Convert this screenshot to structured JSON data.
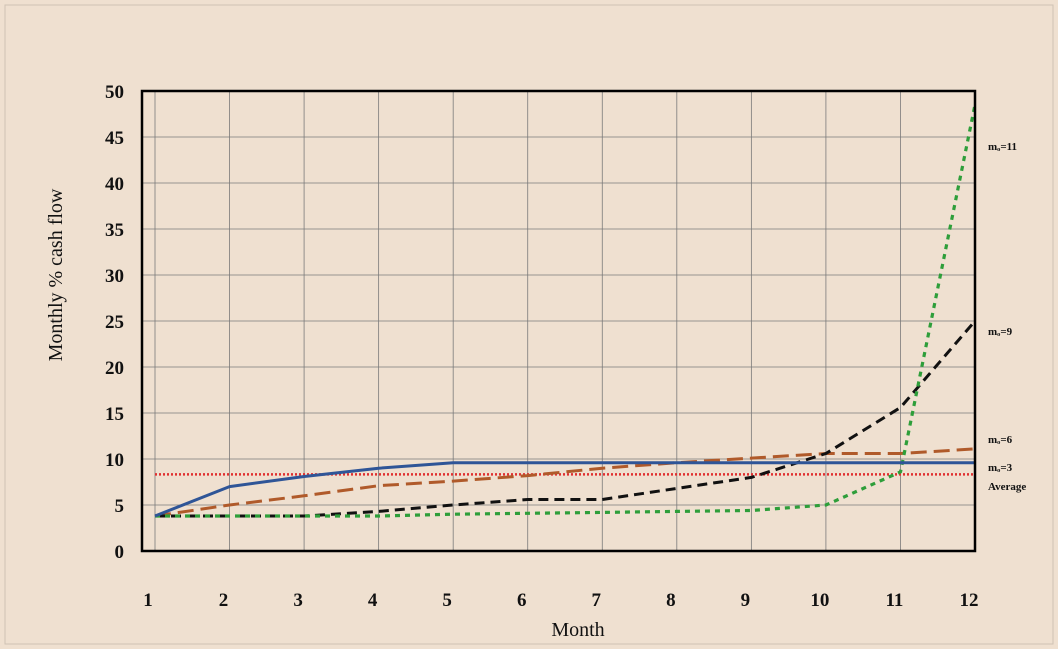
{
  "chart_data": {
    "type": "line",
    "title": "",
    "xlabel": "Month",
    "ylabel": "Monthly % cash flow",
    "x": [
      1,
      2,
      3,
      4,
      5,
      6,
      7,
      8,
      9,
      10,
      11,
      12
    ],
    "xlim": [
      1,
      12
    ],
    "ylim": [
      0,
      50
    ],
    "xticks": [
      "1",
      "2",
      "3",
      "4",
      "5",
      "6",
      "7",
      "8",
      "9",
      "10",
      "11",
      "12"
    ],
    "yticks": [
      "0",
      "5",
      "10",
      "15",
      "20",
      "25",
      "30",
      "35",
      "40",
      "45",
      "50"
    ],
    "grid": true,
    "series": [
      {
        "name": "mₒ=3",
        "color": "#2f5597",
        "dash": "solid",
        "values": [
          3.8,
          7.0,
          8.1,
          9.0,
          9.6,
          9.6,
          9.6,
          9.6,
          9.6,
          9.6,
          9.6,
          9.6
        ]
      },
      {
        "name": "mₒ=6",
        "color": "#b05a2a",
        "dash": "long-dash",
        "values": [
          3.8,
          5.0,
          6.0,
          7.1,
          7.6,
          8.2,
          9.0,
          9.6,
          10.1,
          10.6,
          10.6,
          11.1
        ]
      },
      {
        "name": "mₒ=9",
        "color": "#111111",
        "dash": "dash",
        "values": [
          3.8,
          3.8,
          3.8,
          4.3,
          5.0,
          5.6,
          5.6,
          6.8,
          8.0,
          10.6,
          15.6,
          25.0
        ]
      },
      {
        "name": "mₒ=11",
        "color": "#2e9e3a",
        "dash": "dot",
        "values": [
          3.8,
          3.8,
          3.8,
          3.8,
          4.0,
          4.1,
          4.2,
          4.3,
          4.4,
          5.0,
          8.6,
          48.5
        ]
      },
      {
        "name": "Average",
        "color": "#e03030",
        "dash": "fine-dot",
        "values": [
          8.33,
          8.33,
          8.33,
          8.33,
          8.33,
          8.33,
          8.33,
          8.33,
          8.33,
          8.33,
          8.33,
          8.33
        ]
      }
    ]
  }
}
